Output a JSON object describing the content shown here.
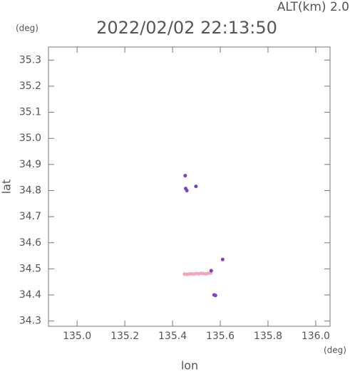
{
  "chart_data": {
    "type": "scatter",
    "title": "2022/02/02 22:13:50",
    "subtitle": "ALT(km) 2.0",
    "y_unit": "(deg)",
    "x_unit": "(deg)",
    "xlabel": "lon",
    "ylabel": "lat",
    "xlim": [
      134.88,
      136.06
    ],
    "ylim": [
      34.28,
      35.35
    ],
    "xticks": [
      {
        "value": 135.0,
        "label": "135.0"
      },
      135.2,
      135.4,
      135.6,
      135.8,
      {
        "value": 136.0,
        "label": "136.0"
      }
    ],
    "yticks": [
      34.3,
      34.4,
      34.5,
      34.6,
      34.7,
      34.8,
      34.9,
      {
        "value": 35.0,
        "label": "35.0"
      },
      35.1,
      35.2,
      35.3
    ],
    "series": [
      {
        "color": "#f4a6b8",
        "x": [
          135.45,
          135.46,
          135.47,
          135.48,
          135.49,
          135.5,
          135.51,
          135.52,
          135.53,
          135.54,
          135.55,
          135.56
        ],
        "values": [
          34.48,
          34.479,
          34.48,
          34.481,
          34.48,
          34.482,
          34.481,
          34.483,
          34.482,
          34.481,
          34.483,
          34.484
        ]
      },
      {
        "color": "#7b3fc8",
        "x": [
          135.453,
          135.455,
          135.46,
          135.498,
          135.562,
          135.574,
          135.58,
          135.61
        ],
        "values": [
          34.857,
          34.808,
          34.8,
          34.816,
          34.493,
          34.4,
          34.398,
          34.536
        ]
      }
    ]
  }
}
